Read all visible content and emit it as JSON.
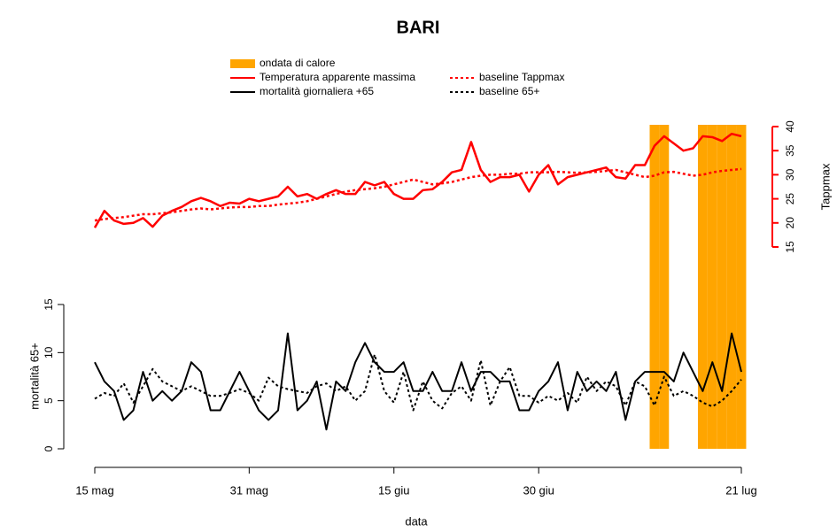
{
  "chart_data": {
    "type": "line",
    "title": "BARI",
    "xlabel": "data",
    "ylabel": "mortalità 65+",
    "y2label": "Tappmax",
    "categories": [
      "15 mag",
      null,
      null,
      null,
      null,
      null,
      null,
      null,
      null,
      null,
      null,
      null,
      null,
      null,
      null,
      null,
      "31 mag",
      null,
      null,
      null,
      null,
      null,
      null,
      null,
      null,
      null,
      null,
      null,
      null,
      null,
      null,
      "15 giu",
      null,
      null,
      null,
      null,
      null,
      null,
      null,
      null,
      null,
      null,
      null,
      null,
      null,
      null,
      "30 giu",
      null,
      null,
      null,
      null,
      null,
      null,
      null,
      null,
      null,
      null,
      null,
      null,
      null,
      null,
      null,
      null,
      null,
      null,
      null,
      null,
      "21 lug"
    ],
    "ylim": [
      0,
      15
    ],
    "yticks": [
      0,
      5,
      10,
      15
    ],
    "y2lim": [
      15,
      40
    ],
    "y2ticks": [
      15,
      20,
      25,
      30,
      35,
      40
    ],
    "series": [
      {
        "name": "ondata di calore",
        "type": "bar",
        "color": "#ffa500",
        "values": [
          0,
          0,
          0,
          0,
          0,
          0,
          0,
          0,
          0,
          0,
          0,
          0,
          0,
          0,
          0,
          0,
          0,
          0,
          0,
          0,
          0,
          0,
          0,
          0,
          0,
          0,
          0,
          0,
          0,
          0,
          0,
          0,
          0,
          0,
          0,
          0,
          0,
          0,
          0,
          0,
          0,
          0,
          0,
          0,
          0,
          0,
          0,
          0,
          0,
          0,
          0,
          0,
          0,
          0,
          0,
          0,
          0,
          0,
          1,
          1,
          0,
          0,
          0,
          1,
          1,
          1,
          1,
          1
        ]
      },
      {
        "name": "Temperatura apparente massima",
        "axis": "y2",
        "color": "#ff0000",
        "dash": "solid",
        "values": [
          19,
          22.5,
          20.5,
          19.8,
          20,
          21,
          19.2,
          21.5,
          22.5,
          23.3,
          24.5,
          25.2,
          24.5,
          23.5,
          24.2,
          24,
          25,
          24.5,
          25,
          25.5,
          27.5,
          25.5,
          26,
          25,
          26,
          26.8,
          26,
          26,
          28.5,
          27.8,
          28.5,
          26,
          25,
          25,
          26.8,
          27,
          28.5,
          30.5,
          31,
          36.8,
          31,
          28.5,
          29.5,
          29.5,
          30,
          26.5,
          30,
          32,
          28,
          29.5,
          30,
          30.5,
          31,
          31.5,
          29.5,
          29.2,
          32,
          32,
          36,
          38,
          36.5,
          35,
          35.5,
          38,
          37.8,
          37,
          38.5,
          38
        ]
      },
      {
        "name": "mortalità giornaliera +65",
        "color": "#000000",
        "dash": "solid",
        "values": [
          9,
          7,
          6,
          3,
          4,
          8,
          5,
          6,
          5,
          6,
          9,
          8,
          4,
          4,
          6,
          8,
          6,
          4,
          3,
          4,
          12,
          4,
          5,
          7,
          2,
          7,
          6,
          9,
          11,
          9,
          8,
          8,
          9,
          6,
          6,
          8,
          6,
          6,
          9,
          6,
          8,
          8,
          7,
          7,
          4,
          4,
          6,
          7,
          9,
          4,
          8,
          6,
          7,
          6,
          8,
          3,
          7,
          8,
          8,
          8,
          7,
          10,
          8,
          6,
          9,
          6,
          12,
          8
        ]
      },
      {
        "name": "baseline Tappmax",
        "axis": "y2",
        "color": "#ff0000",
        "dash": "dotted",
        "values": [
          20.5,
          20.8,
          21,
          21.2,
          21.5,
          21.8,
          21.8,
          22,
          22.2,
          22.5,
          22.8,
          23,
          22.8,
          23,
          23.2,
          23.3,
          23.3,
          23.5,
          23.5,
          23.8,
          24,
          24.2,
          24.5,
          25,
          25.5,
          26,
          26.5,
          26.8,
          27,
          27.2,
          27.5,
          28,
          28.5,
          29,
          28.5,
          28,
          28.2,
          28.5,
          29,
          29.5,
          29.8,
          30,
          30,
          30.2,
          30.2,
          30.5,
          30.5,
          30.5,
          30.6,
          30.5,
          30.4,
          30.5,
          30.6,
          30.8,
          31,
          30.5,
          30,
          29.5,
          29.8,
          30.5,
          30.6,
          30.2,
          29.8,
          30,
          30.5,
          30.8,
          31,
          31.2
        ]
      },
      {
        "name": "baseline 65+",
        "color": "#000000",
        "dash": "dotted",
        "values": [
          5.2,
          5.8,
          5.5,
          6.8,
          4.8,
          6.5,
          8.3,
          7,
          6.5,
          6,
          6.5,
          6,
          5.5,
          5.5,
          5.8,
          6.2,
          5.8,
          5,
          7.4,
          6.5,
          6.2,
          6,
          5.8,
          6.5,
          6.8,
          6,
          6.5,
          5,
          6,
          9.8,
          6,
          4.8,
          8,
          4,
          7,
          5,
          4.2,
          5.8,
          6.5,
          5,
          9.2,
          4.5,
          7,
          8.5,
          5.5,
          5.5,
          4.8,
          5.5,
          5,
          5.8,
          4.8,
          7.5,
          6,
          7,
          6.5,
          4.5,
          7,
          6.5,
          4.5,
          7.5,
          5.5,
          6,
          5.5,
          4.8,
          4.4,
          5,
          6,
          7.2
        ]
      }
    ]
  }
}
